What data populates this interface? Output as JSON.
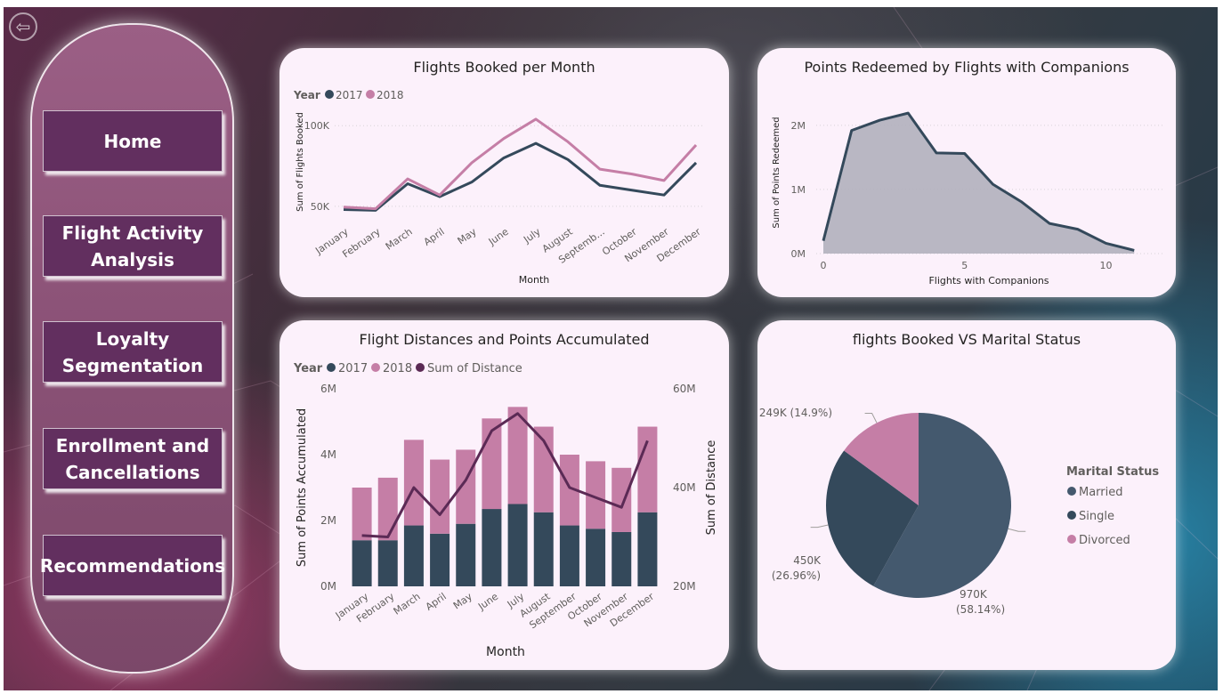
{
  "nav": {
    "back_icon": "back-arrow-icon",
    "buttons": [
      {
        "label": "Home"
      },
      {
        "label": "Flight Activity Analysis"
      },
      {
        "label": "Loyalty Segmentation"
      },
      {
        "label": "Enrollment and Cancellations"
      },
      {
        "label": "Recommendations"
      }
    ]
  },
  "colors": {
    "series_2017": "#34495b",
    "series_2018": "#c57ea6",
    "distance": "#5b2a55",
    "area_fill": "#b1b0bd",
    "married": "#44596e",
    "single": "#34495b",
    "divorced": "#c57ea6"
  },
  "chart_data": [
    {
      "id": "flights_per_month",
      "type": "line",
      "title": "Flights Booked per Month",
      "legend_title": "Year",
      "xlabel": "Month",
      "ylabel": "Sum of Flights Booked",
      "categories": [
        "January",
        "February",
        "March",
        "April",
        "May",
        "June",
        "July",
        "August",
        "Septemb...",
        "October",
        "November",
        "December"
      ],
      "yticks": [
        "50K",
        "100K"
      ],
      "ylim": [
        40000,
        115000
      ],
      "series": [
        {
          "name": "2017",
          "values": [
            48000,
            47500,
            64000,
            56000,
            65000,
            80000,
            89000,
            79000,
            63000,
            60000,
            57000,
            77000
          ]
        },
        {
          "name": "2018",
          "values": [
            49500,
            48500,
            67000,
            57000,
            77000,
            92000,
            104000,
            90000,
            73000,
            70000,
            66000,
            88000
          ]
        }
      ]
    },
    {
      "id": "points_by_companions",
      "type": "area",
      "title": "Points Redeemed by Flights with Companions",
      "xlabel": "Flights with Companions",
      "ylabel": "Sum of Points Redeemed",
      "xticks": [
        "0",
        "5",
        "10"
      ],
      "yticks": [
        "0M",
        "1M",
        "2M"
      ],
      "xlim": [
        0,
        12
      ],
      "ylim": [
        0,
        2400000
      ],
      "x": [
        0,
        1,
        2,
        3,
        4,
        5,
        6,
        7,
        8,
        9,
        10,
        11
      ],
      "values": [
        200000,
        1920000,
        2080000,
        2190000,
        1570000,
        1560000,
        1080000,
        810000,
        470000,
        380000,
        160000,
        50000
      ]
    },
    {
      "id": "distances_points",
      "type": "bar",
      "title": "Flight Distances and Points Accumulated",
      "legend_title": "Year",
      "legend_line": "Sum of Distance",
      "xlabel": "Month",
      "ylabel": "Sum of Points Accumulated",
      "ylabel2": "Sum of Distance",
      "categories": [
        "January",
        "February",
        "March",
        "April",
        "May",
        "June",
        "July",
        "August",
        "September",
        "October",
        "November",
        "December"
      ],
      "yticks": [
        "0M",
        "2M",
        "4M",
        "6M"
      ],
      "yticks2": [
        "20M",
        "40M",
        "60M"
      ],
      "ylim": [
        0,
        6000000
      ],
      "ylim2": [
        20000000,
        60000000
      ],
      "series": [
        {
          "name": "2017",
          "values": [
            1400000,
            1400000,
            1850000,
            1600000,
            1900000,
            2350000,
            2500000,
            2250000,
            1850000,
            1750000,
            1650000,
            2250000
          ]
        },
        {
          "name": "2018",
          "values": [
            1600000,
            1900000,
            2600000,
            2250000,
            2250000,
            2750000,
            2950000,
            2600000,
            2150000,
            2050000,
            1950000,
            2600000
          ]
        }
      ],
      "line": {
        "name": "Sum of Distance",
        "values": [
          30300000,
          30000000,
          40000000,
          34500000,
          41500000,
          51500000,
          55000000,
          49500000,
          40000000,
          38000000,
          36000000,
          49500000
        ]
      }
    },
    {
      "id": "marital_status",
      "type": "pie",
      "title": "flights Booked VS Marital Status",
      "legend_title": "Marital Status",
      "slices": [
        {
          "name": "Married",
          "value": 970000,
          "label": "970K",
          "pct": "(58.14%)"
        },
        {
          "name": "Single",
          "value": 450000,
          "label": "450K",
          "pct": "(26.96%)"
        },
        {
          "name": "Divorced",
          "value": 249000,
          "label": "249K (14.9%)",
          "pct": ""
        }
      ]
    }
  ]
}
